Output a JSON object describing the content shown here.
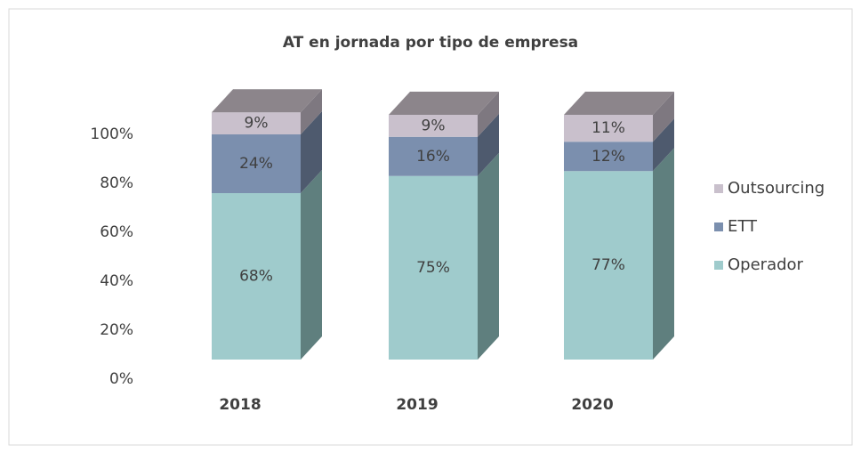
{
  "chart_data": {
    "type": "bar3d_stacked",
    "title": "AT en jornada por tipo de empresa",
    "categories": [
      "2018",
      "2019",
      "2020"
    ],
    "series": [
      {
        "name": "Operador",
        "color": "#9fcbcc",
        "side": "#5f7f7e",
        "values": [
          68,
          75,
          77
        ],
        "value_labels": [
          "68%",
          "75%",
          "77%"
        ]
      },
      {
        "name": "ETT",
        "color": "#7b8fae",
        "side": "#4e5a6e",
        "values": [
          24,
          16,
          12
        ],
        "value_labels": [
          "24%",
          "16%",
          "12%"
        ]
      },
      {
        "name": "Outsourcing",
        "color": "#c9c0cc",
        "side": "#7e7880",
        "values": [
          9,
          9,
          11
        ],
        "value_labels": [
          "9%",
          "9%",
          "11%"
        ]
      }
    ],
    "ylim": [
      0,
      100
    ],
    "yticks": [
      {
        "value": 0,
        "label": "0%"
      },
      {
        "value": 20,
        "label": "20%"
      },
      {
        "value": 40,
        "label": "40%"
      },
      {
        "value": 60,
        "label": "60%"
      },
      {
        "value": 80,
        "label": "80%"
      },
      {
        "value": 100,
        "label": "100%"
      }
    ],
    "legend": "right"
  }
}
